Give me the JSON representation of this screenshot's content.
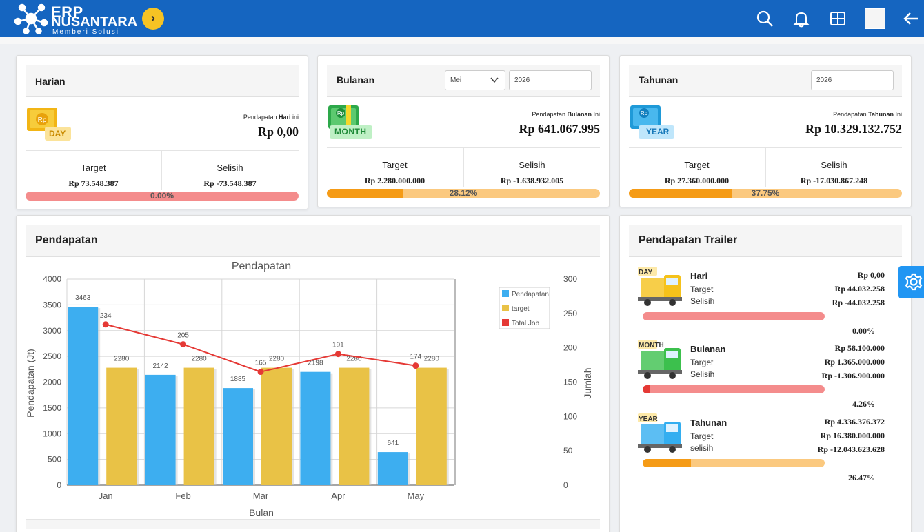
{
  "header": {
    "brand_line1": "ERP",
    "brand_line2": "NUSANTARA",
    "tagline": "Memberi Solusi",
    "toggle_icon": "chevron-right-icon",
    "icons": [
      "search-icon",
      "bell-icon",
      "grid-icon",
      "avatar",
      "back-arrow-icon"
    ]
  },
  "daily": {
    "title": "Harian",
    "badge": "DAY",
    "income_label_pre": "Pendapatan ",
    "income_label_bold": "Hari",
    "income_label_post": " ini",
    "income_value": "Rp 0,00",
    "target_label": "Target",
    "target_value": "Rp 73.548.387",
    "diff_label": "Selisih",
    "diff_value": "Rp -73.548.387",
    "progress_text": "0.00%",
    "progress_fraction": 0.0
  },
  "monthly": {
    "title": "Bulanan",
    "month_select": "Mei",
    "year_input": "2026",
    "badge": "MONTH",
    "income_label_pre": "Pendapatan ",
    "income_label_bold": "Bulanan",
    "income_label_post": " Ini",
    "income_value": "Rp 641.067.995",
    "target_label": "Target",
    "target_value": "Rp 2.280.000.000",
    "diff_label": "Selisih",
    "diff_value": "Rp -1.638.932.005",
    "progress_text": "28.12%",
    "progress_fraction": 0.2812
  },
  "yearly": {
    "title": "Tahunan",
    "year_input": "2026",
    "badge": "YEAR",
    "income_label_pre": "Pendapatan ",
    "income_label_bold": "Tahunan",
    "income_label_post": " Ini",
    "income_value": "Rp 10.329.132.752",
    "target_label": "Target",
    "target_value": "Rp 27.360.000.000",
    "diff_label": "Selisih",
    "diff_value": "Rp -17.030.867.248",
    "progress_text": "37.75%",
    "progress_fraction": 0.3775
  },
  "chart_panel": {
    "title": "Pendapatan"
  },
  "chart_data": {
    "type": "bar",
    "title": "Pendapatan",
    "xlabel": "Bulan",
    "ylabel": "Pendapatan (Jt)",
    "y2label": "Jumlah",
    "categories": [
      "Jan",
      "Feb",
      "Mar",
      "Apr",
      "May"
    ],
    "ylim": [
      0,
      4000
    ],
    "yticks": [
      0,
      500,
      1000,
      1500,
      2000,
      2500,
      3000,
      3500,
      4000
    ],
    "y2lim": [
      0,
      300
    ],
    "y2ticks": [
      0,
      50,
      100,
      150,
      200,
      250,
      300
    ],
    "grid": true,
    "legend_position": "top-right",
    "series": [
      {
        "name": "Pendapatan",
        "type": "bar",
        "axis": "left",
        "color": "#3daef0",
        "values": [
          3463,
          2142,
          1885,
          2198,
          641
        ]
      },
      {
        "name": "target",
        "type": "bar",
        "axis": "left",
        "color": "#e9c246",
        "values": [
          2280,
          2280,
          2280,
          2280,
          2280
        ]
      },
      {
        "name": "Total Job",
        "type": "line",
        "axis": "right",
        "color": "#e53935",
        "values": [
          234,
          205,
          165,
          191,
          174
        ]
      }
    ]
  },
  "trailer": {
    "title": "Pendapatan Trailer",
    "items": [
      {
        "badge": "DAY",
        "name": "Hari",
        "target_label": "Target",
        "diff_label": "Selisih",
        "value": "Rp 0,00",
        "target": "Rp 44.032.258",
        "diff": "Rp -44.032.258",
        "pct": "0.00%",
        "fraction": 0.0,
        "truck_color": "#f5c21b",
        "bar_bg": "#f48c8c",
        "bar_fill": "#e53935"
      },
      {
        "badge": "MONTH",
        "name": "Bulanan",
        "target_label": "Target",
        "diff_label": "Selisih",
        "value": "Rp 58.100.000",
        "target": "Rp 1.365.000.000",
        "diff": "Rp -1.306.900.000",
        "pct": "4.26%",
        "fraction": 0.0426,
        "truck_color": "#3cc04d",
        "bar_bg": "#f48c8c",
        "bar_fill": "#e53935"
      },
      {
        "badge": "YEAR",
        "name": "Tahunan",
        "target_label": "Target",
        "diff_label": "selisih",
        "value": "Rp 4.336.376.372",
        "target": "Rp 16.380.000.000",
        "diff": "Rp -12.043.623.628",
        "pct": "26.47%",
        "fraction": 0.2647,
        "truck_color": "#33aef0",
        "bar_bg": "#fbc97f",
        "bar_fill": "#f59b16"
      }
    ]
  },
  "colors": {
    "header_bg": "#1565c0",
    "daily_bar_bg": "#f48c8c",
    "monthly_bar_bg": "#fbc97f",
    "monthly_bar_fill": "#f59b16",
    "accent_yellow": "#f6c324"
  }
}
